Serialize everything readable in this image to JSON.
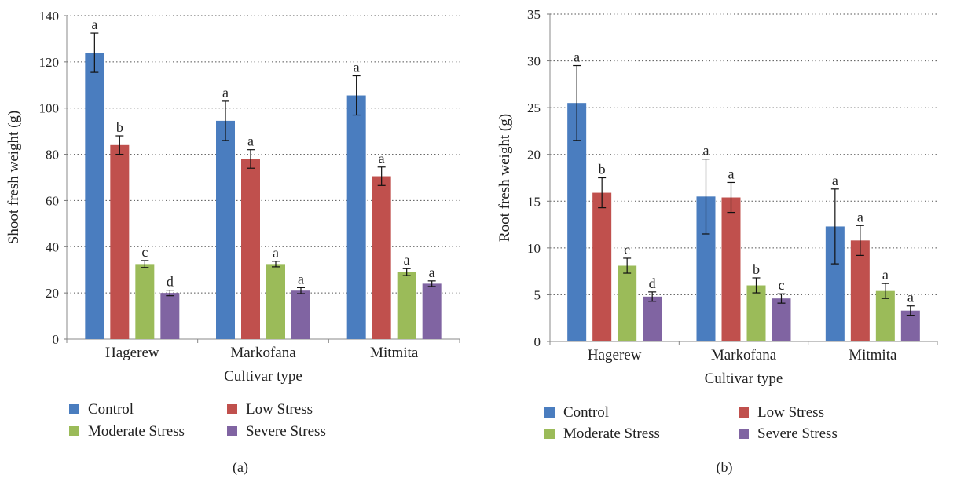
{
  "chart_data": [
    {
      "panel_label": "(a)",
      "type": "bar",
      "xlabel": "Cultivar type",
      "ylabel": "Shoot fresh weight (g)",
      "ylim": [
        0,
        140
      ],
      "yticks": [
        0,
        20,
        40,
        60,
        80,
        100,
        120,
        140
      ],
      "grid": "horizontal dotted",
      "legend_position": "bottom",
      "categories": [
        "Hagerew",
        "Markofana",
        "Mitmita"
      ],
      "series": [
        {
          "name": "Control",
          "color": "#4a7dbf",
          "values": [
            124,
            94.5,
            105.5
          ],
          "errors": [
            8.5,
            8.5,
            8.5
          ],
          "letters": [
            "a",
            "a",
            "a"
          ]
        },
        {
          "name": "Low Stress",
          "color": "#c0504d",
          "values": [
            84,
            78,
            70.5
          ],
          "errors": [
            4,
            4,
            4
          ],
          "letters": [
            "b",
            "a",
            "a"
          ]
        },
        {
          "name": "Moderate Stress",
          "color": "#9bbb59",
          "values": [
            32.5,
            32.5,
            29
          ],
          "errors": [
            1.5,
            1.2,
            1.5
          ],
          "letters": [
            "c",
            "a",
            "a"
          ]
        },
        {
          "name": "Severe Stress",
          "color": "#8064a2",
          "values": [
            20,
            21,
            24
          ],
          "errors": [
            1.2,
            1.3,
            1.2
          ],
          "letters": [
            "d",
            "a",
            "a"
          ]
        }
      ]
    },
    {
      "panel_label": "(b)",
      "type": "bar",
      "xlabel": "Cultivar type",
      "ylabel": "Root fresh weight (g)",
      "ylim": [
        0,
        35
      ],
      "yticks": [
        0,
        5,
        10,
        15,
        20,
        25,
        30,
        35
      ],
      "grid": "horizontal dotted",
      "legend_position": "bottom",
      "categories": [
        "Hagerew",
        "Markofana",
        "Mitmita"
      ],
      "series": [
        {
          "name": "Control",
          "color": "#4a7dbf",
          "values": [
            25.5,
            15.5,
            12.3
          ],
          "errors": [
            4,
            4,
            4
          ],
          "letters": [
            "a",
            "a",
            "a"
          ]
        },
        {
          "name": "Low Stress",
          "color": "#c0504d",
          "values": [
            15.9,
            15.4,
            10.8
          ],
          "errors": [
            1.6,
            1.6,
            1.6
          ],
          "letters": [
            "b",
            "a",
            "a"
          ]
        },
        {
          "name": "Moderate Stress",
          "color": "#9bbb59",
          "values": [
            8.1,
            6,
            5.4
          ],
          "errors": [
            0.8,
            0.8,
            0.8
          ],
          "letters": [
            "c",
            "b",
            "a"
          ]
        },
        {
          "name": "Severe Stress",
          "color": "#8064a2",
          "values": [
            4.8,
            4.6,
            3.3
          ],
          "errors": [
            0.5,
            0.5,
            0.5
          ],
          "letters": [
            "d",
            "c",
            "a"
          ]
        }
      ]
    }
  ]
}
